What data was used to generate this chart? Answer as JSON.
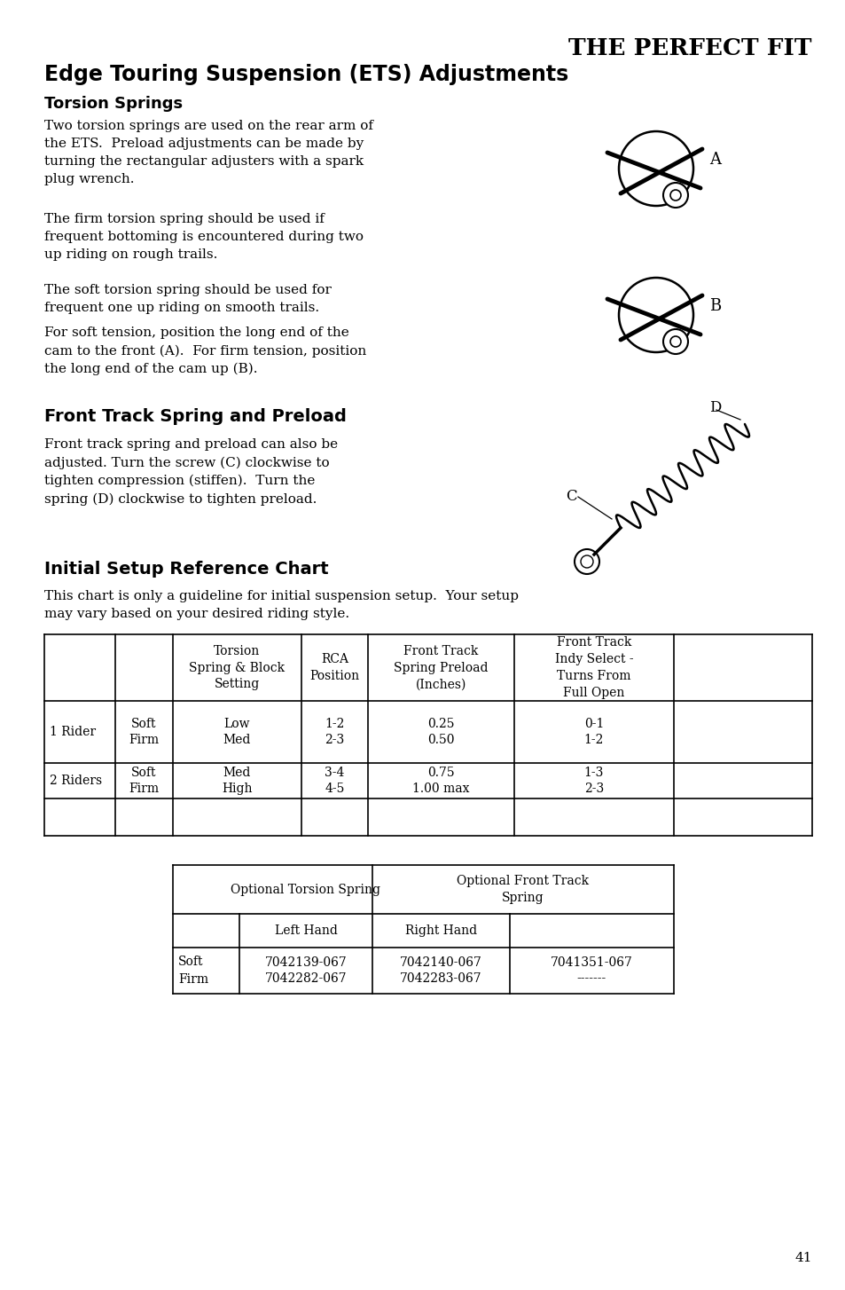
{
  "title_right": "THE PERFECT FIT",
  "heading1": "Edge Touring Suspension (ETS) Adjustments",
  "heading2": "Torsion Springs",
  "para1": "Two torsion springs are used on the rear arm of\nthe ETS.  Preload adjustments can be made by\nturning the rectangular adjusters with a spark\nplug wrench.",
  "para2": "The firm torsion spring should be used if\nfrequent bottoming is encountered during two\nup riding on rough trails.",
  "para3": "The soft torsion spring should be used for\nfrequent one up riding on smooth trails.",
  "para4": "For soft tension, position the long end of the\ncam to the front (A).  For firm tension, position\nthe long end of the cam up (B).",
  "heading3": "Front Track Spring and Preload",
  "para5": "Front track spring and preload can also be\nadjusted. Turn the screw (C) clockwise to\ntighten compression (stiffen).  Turn the\nspring (D) clockwise to tighten preload.",
  "heading4": "Initial Setup Reference Chart",
  "para6": "This chart is only a guideline for initial suspension setup.  Your setup\nmay vary based on your desired riding style.",
  "page_number": "41",
  "bg_color": "#ffffff",
  "text_color": "#000000"
}
